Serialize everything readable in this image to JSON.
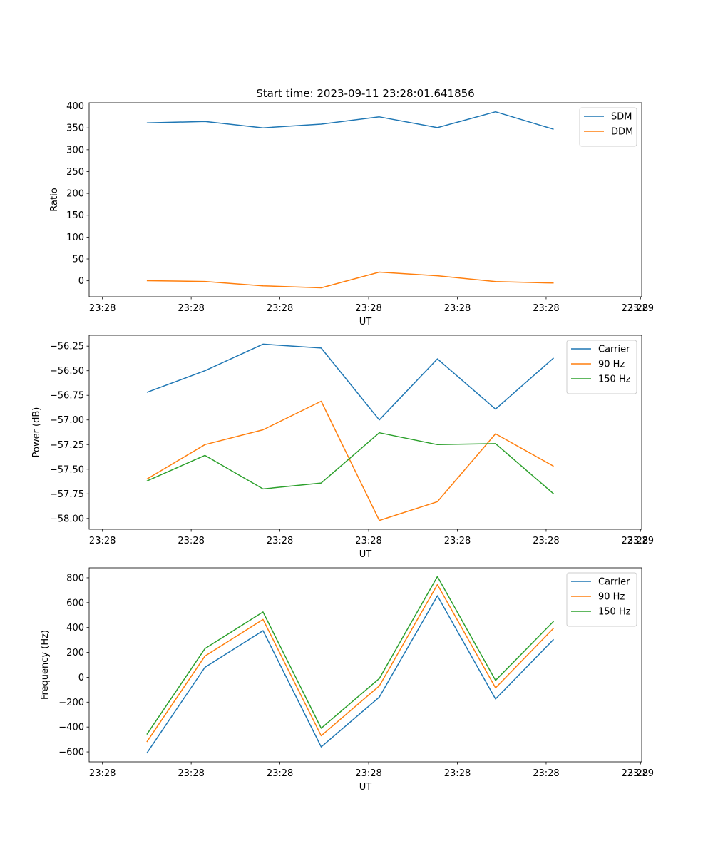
{
  "figure": {
    "title": "Start time: 2023-09-11 23:28:01.641856"
  },
  "chart_data": [
    {
      "type": "line",
      "xlabel": "UT",
      "ylabel": "Ratio",
      "x_tick_labels": [
        "23:28",
        "23:28",
        "23:28",
        "23:28",
        "23:28",
        "23:28",
        "23:28"
      ],
      "x_tick_values": [
        0,
        2,
        4,
        6,
        8,
        10,
        12
      ],
      "x_last_tick_label": "23:29",
      "x_last_tick_value": 12.127,
      "xlim": [
        -0.3,
        12.154
      ],
      "x": [
        1,
        2.31,
        3.62,
        4.93,
        6.24,
        7.55,
        8.86,
        10.17
      ],
      "yticks": [
        0,
        50,
        100,
        150,
        200,
        250,
        300,
        350,
        400
      ],
      "ytick_labels": [
        "0",
        "50",
        "100",
        "150",
        "200",
        "250",
        "300",
        "350",
        "400"
      ],
      "ylim": [
        -36.5,
        407.5
      ],
      "legend": "top-right",
      "series": [
        {
          "name": "SDM",
          "color": "#1f77b4",
          "values": [
            361.5,
            364.5,
            350,
            358.6,
            375.1,
            350.5,
            386.8,
            346.8
          ]
        },
        {
          "name": "DDM",
          "color": "#ff7f0e",
          "values": [
            0.3,
            -1.6,
            -11.5,
            -16.1,
            19.8,
            11.5,
            -1.9,
            -5.2
          ]
        }
      ]
    },
    {
      "type": "line",
      "xlabel": "UT",
      "ylabel": "Power (dB)",
      "x_tick_labels": [
        "23:28",
        "23:28",
        "23:28",
        "23:28",
        "23:28",
        "23:28",
        "23:28"
      ],
      "x_tick_values": [
        0,
        2,
        4,
        6,
        8,
        10,
        12
      ],
      "x_last_tick_label": "23:29",
      "x_last_tick_value": 12.127,
      "xlim": [
        -0.3,
        12.154
      ],
      "x": [
        1,
        2.31,
        3.62,
        4.93,
        6.24,
        7.55,
        8.86,
        10.17
      ],
      "yticks": [
        -58.0,
        -57.75,
        -57.5,
        -57.25,
        -57.0,
        -56.75,
        -56.5,
        -56.25
      ],
      "ytick_labels": [
        "−58.00",
        "−57.75",
        "−57.50",
        "−57.25",
        "−57.00",
        "−56.75",
        "−56.50",
        "−56.25"
      ],
      "ylim": [
        -58.11,
        -56.14
      ],
      "legend": "top-right",
      "series": [
        {
          "name": "Carrier",
          "color": "#1f77b4",
          "values": [
            -56.72,
            -56.5,
            -56.23,
            -56.27,
            -57.0,
            -56.38,
            -56.89,
            -56.37
          ]
        },
        {
          "name": "90 Hz",
          "color": "#ff7f0e",
          "values": [
            -57.6,
            -57.25,
            -57.1,
            -56.81,
            -58.02,
            -57.83,
            -57.14,
            -57.47
          ]
        },
        {
          "name": "150 Hz",
          "color": "#2ca02c",
          "values": [
            -57.62,
            -57.36,
            -57.7,
            -57.64,
            -57.13,
            -57.25,
            -57.24,
            -57.75
          ]
        }
      ]
    },
    {
      "type": "line",
      "xlabel": "UT",
      "ylabel": "Frequency (Hz)",
      "x_tick_labels": [
        "23:28",
        "23:28",
        "23:28",
        "23:28",
        "23:28",
        "23:28",
        "23:28"
      ],
      "x_tick_values": [
        0,
        2,
        4,
        6,
        8,
        10,
        12
      ],
      "x_last_tick_label": "23:29",
      "x_last_tick_value": 12.127,
      "xlim": [
        -0.3,
        12.154
      ],
      "x": [
        1,
        2.31,
        3.62,
        4.93,
        6.24,
        7.55,
        8.86,
        10.17
      ],
      "yticks": [
        -600,
        -400,
        -200,
        0,
        200,
        400,
        600,
        800
      ],
      "ytick_labels": [
        "−600",
        "−400",
        "−200",
        "0",
        "200",
        "400",
        "600",
        "800"
      ],
      "ylim": [
        -680,
        880
      ],
      "legend": "top-right",
      "series": [
        {
          "name": "Carrier",
          "color": "#1f77b4",
          "values": [
            -610,
            80,
            375,
            -560,
            -160,
            655,
            -175,
            305
          ]
        },
        {
          "name": "90 Hz",
          "color": "#ff7f0e",
          "values": [
            -520,
            170,
            465,
            -470,
            -70,
            745,
            -85,
            395
          ]
        },
        {
          "name": "150 Hz",
          "color": "#2ca02c",
          "values": [
            -460,
            230,
            525,
            -410,
            -10,
            810,
            -25,
            450
          ]
        }
      ]
    }
  ]
}
